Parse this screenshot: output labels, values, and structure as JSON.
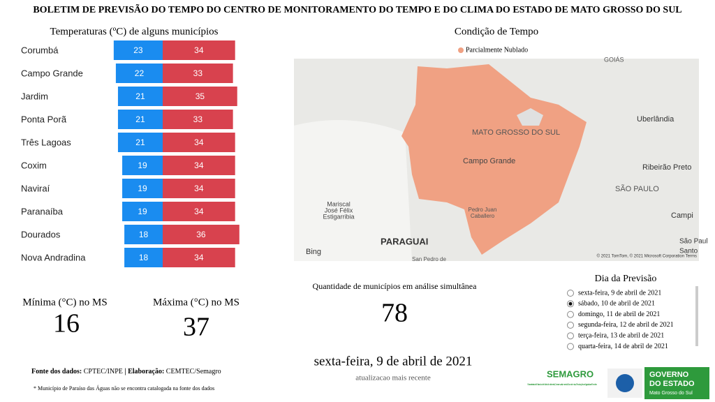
{
  "title": "BOLETIM DE PREVISÃO DO TEMPO DO CENTRO DE MONITORAMENTO DO TEMPO E DO CLIMA DO ESTADO DE MATO GROSSO DO SUL",
  "chart_data": {
    "type": "bar",
    "title": "Temperaturas (ºC) de alguns municípios",
    "categories": [
      "Corumbá",
      "Campo Grande",
      "Jardim",
      "Ponta Porã",
      "Três Lagoas",
      "Coxim",
      "Naviraí",
      "Paranaíba",
      "Dourados",
      "Nova Andradina"
    ],
    "series": [
      {
        "color": "#1a8cf0",
        "values": [
          23,
          22,
          21,
          21,
          21,
          19,
          19,
          19,
          18,
          18
        ]
      },
      {
        "color": "#d8424e",
        "values": [
          34,
          33,
          35,
          33,
          34,
          34,
          34,
          34,
          36,
          34
        ]
      }
    ]
  },
  "minimum": {
    "label": "Mínima (°C) no MS",
    "value": "16"
  },
  "maximum": {
    "label": "Máxima (°C) no MS",
    "value": "37"
  },
  "map": {
    "title": "Condição de Tempo",
    "legend": "Parcialmente Nublado",
    "legend_color": "#f0a183",
    "labels": [
      "GOIÁS",
      "MATO GROSSO DO SUL",
      "Campo Grande",
      "Uberlândia",
      "Ribeirão Preto",
      "SÃO PAULO",
      "Mariscal",
      "José Félix",
      "Estigarribia",
      "Pedro Juan",
      "Caballero",
      "PARAGUAI",
      "Campi",
      "São Paul",
      "Santo",
      "San Pedro de"
    ],
    "bing": "Bing",
    "credit": "© 2021 TomTom, © 2021 Microsoft Corporation  Terms"
  },
  "count": {
    "label": "Quantidade de municípios em análise simultânea",
    "value": "78"
  },
  "date": {
    "value": "sexta-feira, 9 de abril de 2021",
    "note": "atualizacao mais recente"
  },
  "forecast_day": {
    "title": "Dia da Previsão",
    "options": [
      "sexta-feira, 9 de abril de 2021",
      "sábado, 10 de abril de 2021",
      "domingo, 11 de abril de 2021",
      "segunda-feira, 12 de abril de 2021",
      "terça-feira, 13 de abril de 2021",
      "quarta-feira, 14 de abril de 2021"
    ],
    "selected": 1
  },
  "footer": {
    "source_label": "Fonte dos dados:",
    "source": " CPTEC/INPE ",
    "separator": "| Elaboração:",
    "author": " CEMTEC/Semagro",
    "note": "* Município de Paraíso das Águas não se encontra catalogada na fonte dos dados"
  },
  "logos": {
    "semagro": "SEMAGRO",
    "semagro_sub": "Secretaria de Estado de Meio Ambiente, Desenvolvimento Econômico, Produção e Agricultura Familiar",
    "gov": "GOVERNO",
    "gov2": "DO ESTADO",
    "gov3": "Mato Grosso do Sul"
  }
}
